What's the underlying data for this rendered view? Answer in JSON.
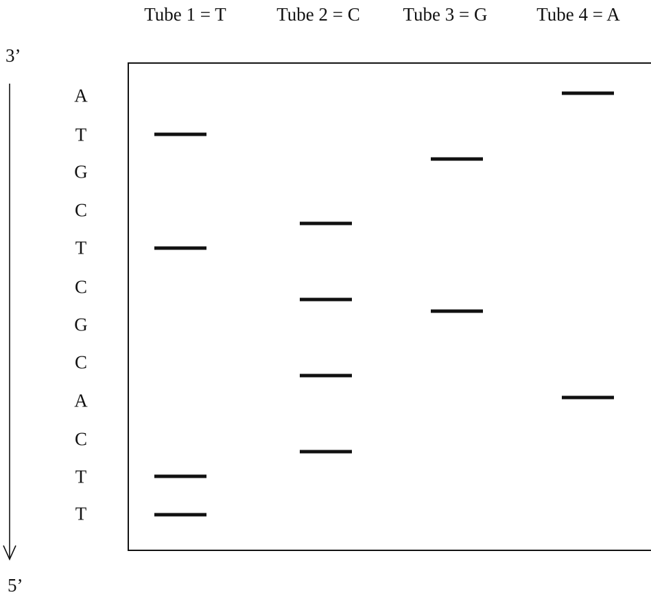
{
  "lanes": [
    {
      "label": "Tube 1 = T",
      "base": "T"
    },
    {
      "label": "Tube 2 = C",
      "base": "C"
    },
    {
      "label": "Tube 3 = G",
      "base": "G"
    },
    {
      "label": "Tube 4 = A",
      "base": "A"
    }
  ],
  "direction": {
    "top_label": "3’",
    "bottom_label": "5’"
  },
  "sequence": [
    "A",
    "T",
    "G",
    "C",
    "T",
    "C",
    "G",
    "C",
    "A",
    "C",
    "T",
    "T"
  ],
  "colors": {
    "ink": "#111111",
    "background": "#ffffff"
  }
}
